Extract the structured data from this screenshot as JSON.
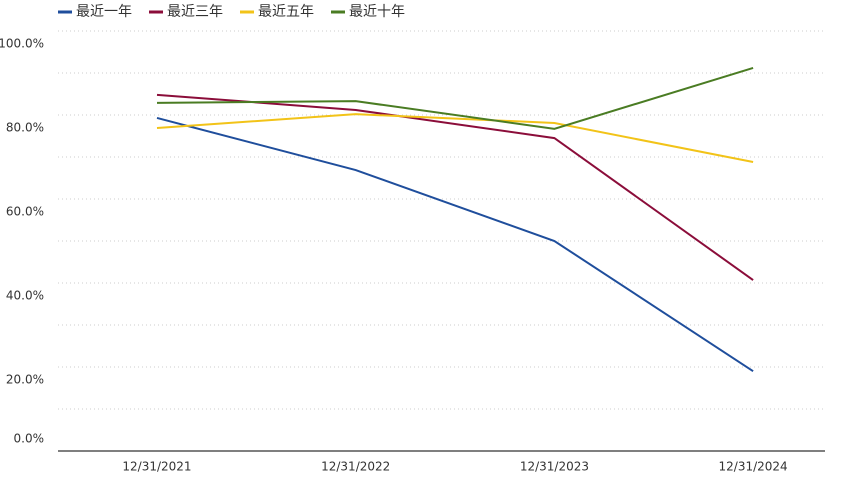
{
  "chart_data": {
    "type": "line",
    "categories": [
      "12/31/2021",
      "12/31/2022",
      "12/31/2023",
      "12/31/2024"
    ],
    "series": [
      {
        "name": "最近一年",
        "color": "#1f4e9c",
        "values": [
          79.3,
          66.9,
          50.0,
          19.0
        ]
      },
      {
        "name": "最近三年",
        "color": "#8b0d3a",
        "values": [
          84.8,
          81.2,
          74.5,
          40.7
        ]
      },
      {
        "name": "最近五年",
        "color": "#f2c318",
        "values": [
          76.9,
          80.2,
          78.1,
          68.8
        ]
      },
      {
        "name": "最近十年",
        "color": "#4a7c23",
        "values": [
          82.9,
          83.3,
          76.7,
          91.2
        ]
      }
    ],
    "ylim": [
      0,
      100
    ],
    "yticks": [
      {
        "value": 0,
        "label": "0.0%"
      },
      {
        "value": 20,
        "label": "20.0%"
      },
      {
        "value": 40,
        "label": "40.0%"
      },
      {
        "value": 60,
        "label": "60.0%"
      },
      {
        "value": 80,
        "label": "80.0%"
      },
      {
        "value": 100,
        "label": "100.0%"
      }
    ],
    "minor_yticks": [
      10,
      30,
      50,
      70,
      90
    ],
    "grid": true,
    "legend": "top-left"
  }
}
